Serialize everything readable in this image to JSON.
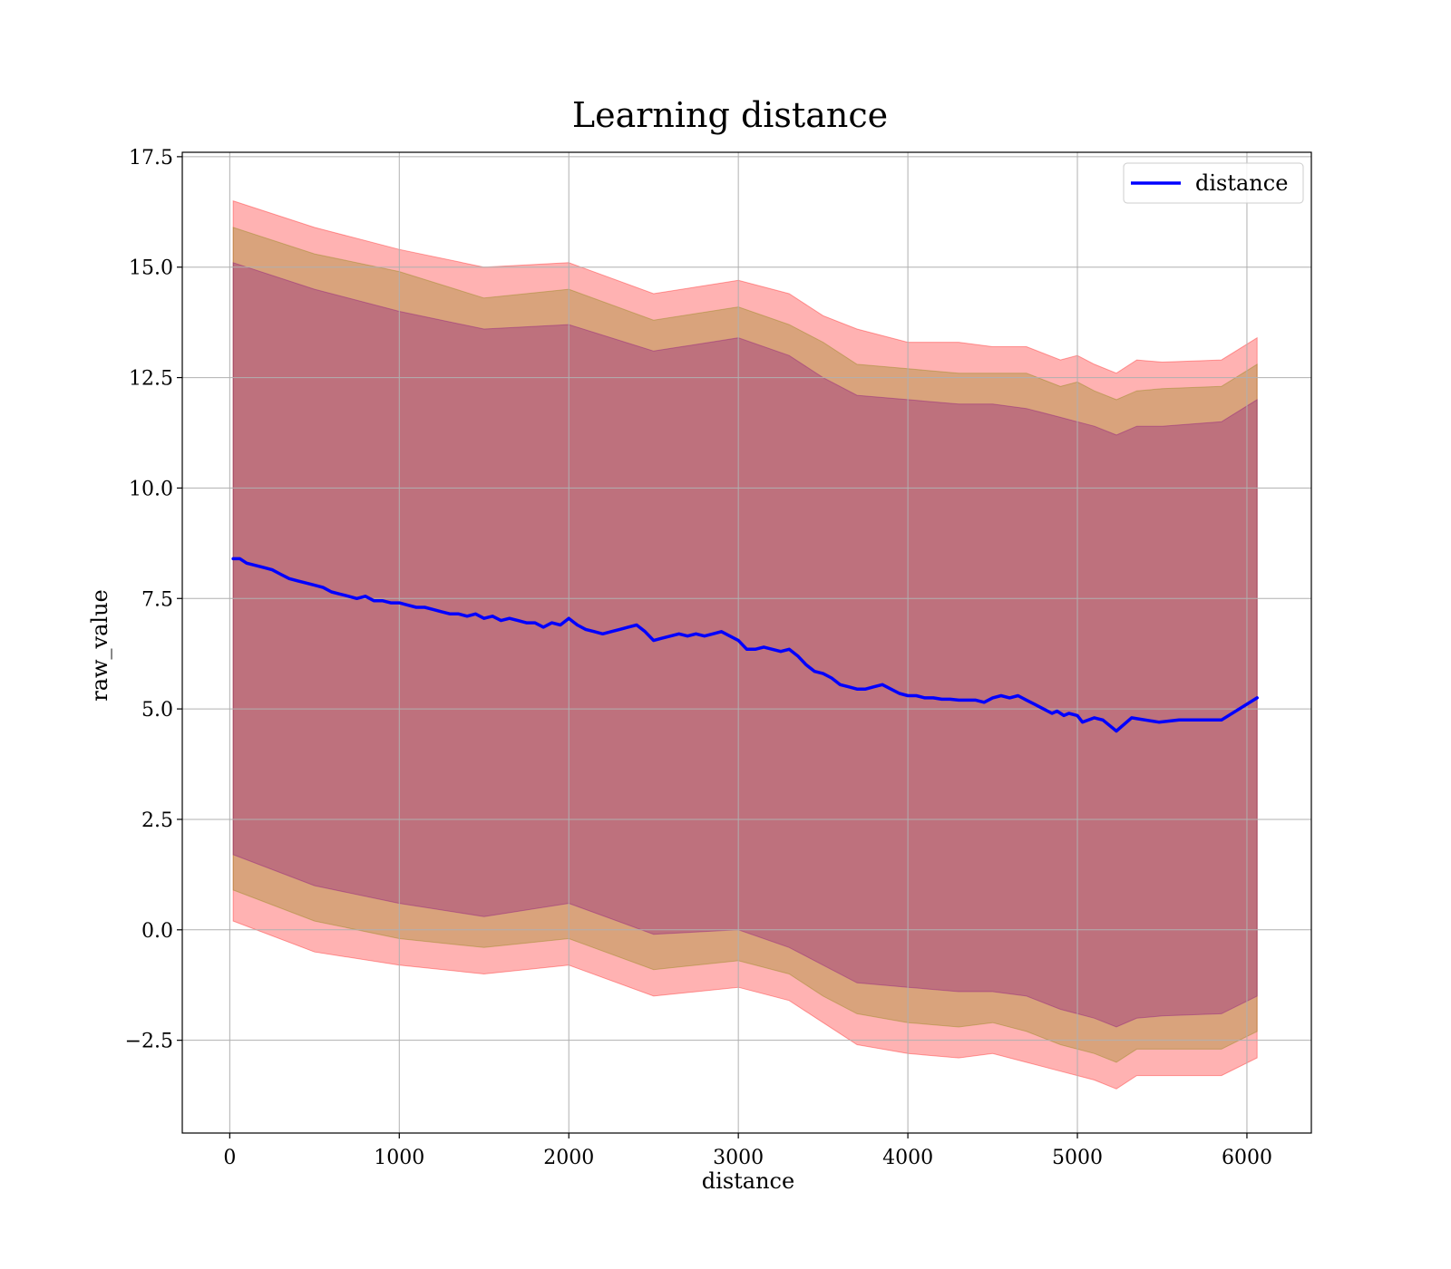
{
  "chart_data": {
    "type": "line",
    "title": "Learning distance",
    "xlabel": "distance",
    "ylabel": "raw_value",
    "xlim": [
      -280,
      6380
    ],
    "ylim": [
      -4.6,
      17.6
    ],
    "grid": true,
    "legend_position": "top-right",
    "x_ticks": [
      0,
      1000,
      2000,
      3000,
      4000,
      5000,
      6000
    ],
    "x_tick_labels": [
      "0",
      "1000",
      "2000",
      "3000",
      "4000",
      "5000",
      "6000"
    ],
    "y_ticks": [
      -2.5,
      0.0,
      2.5,
      5.0,
      7.5,
      10.0,
      12.5,
      15.0,
      17.5
    ],
    "y_tick_labels": [
      "−2.5",
      "0.0",
      "2.5",
      "5.0",
      "7.5",
      "10.0",
      "12.5",
      "15.0",
      "17.5"
    ],
    "series": [
      {
        "name": "distance",
        "color": "#0000ff",
        "x": [
          20,
          60,
          100,
          150,
          200,
          250,
          300,
          350,
          400,
          450,
          500,
          550,
          600,
          650,
          700,
          750,
          800,
          850,
          900,
          950,
          1000,
          1050,
          1100,
          1150,
          1200,
          1250,
          1300,
          1350,
          1400,
          1450,
          1500,
          1550,
          1600,
          1650,
          1700,
          1750,
          1800,
          1850,
          1900,
          1950,
          2000,
          2050,
          2100,
          2150,
          2200,
          2250,
          2300,
          2350,
          2400,
          2450,
          2500,
          2550,
          2600,
          2650,
          2700,
          2750,
          2800,
          2850,
          2900,
          2950,
          3000,
          3050,
          3100,
          3150,
          3200,
          3250,
          3300,
          3350,
          3400,
          3450,
          3500,
          3550,
          3600,
          3650,
          3700,
          3750,
          3800,
          3850,
          3900,
          3950,
          4000,
          4050,
          4100,
          4150,
          4200,
          4250,
          4300,
          4350,
          4400,
          4450,
          4500,
          4550,
          4600,
          4650,
          4700,
          4750,
          4800,
          4850,
          4880,
          4920,
          4950,
          5000,
          5030,
          5100,
          5150,
          5230,
          5320,
          5480,
          5600,
          5850,
          6060
        ],
        "values": [
          8.4,
          8.4,
          8.3,
          8.25,
          8.2,
          8.15,
          8.05,
          7.95,
          7.9,
          7.85,
          7.8,
          7.75,
          7.65,
          7.6,
          7.55,
          7.5,
          7.55,
          7.45,
          7.45,
          7.4,
          7.4,
          7.35,
          7.3,
          7.3,
          7.25,
          7.2,
          7.15,
          7.15,
          7.1,
          7.15,
          7.05,
          7.1,
          7.0,
          7.05,
          7.0,
          6.95,
          6.95,
          6.85,
          6.95,
          6.9,
          7.05,
          6.9,
          6.8,
          6.75,
          6.7,
          6.75,
          6.8,
          6.85,
          6.9,
          6.75,
          6.55,
          6.6,
          6.65,
          6.7,
          6.65,
          6.7,
          6.65,
          6.7,
          6.75,
          6.65,
          6.55,
          6.35,
          6.35,
          6.4,
          6.35,
          6.3,
          6.35,
          6.2,
          6.0,
          5.85,
          5.8,
          5.7,
          5.55,
          5.5,
          5.45,
          5.45,
          5.5,
          5.55,
          5.45,
          5.35,
          5.3,
          5.3,
          5.25,
          5.25,
          5.22,
          5.22,
          5.2,
          5.2,
          5.2,
          5.15,
          5.25,
          5.3,
          5.25,
          5.3,
          5.2,
          5.1,
          5.0,
          4.9,
          4.95,
          4.85,
          4.9,
          4.85,
          4.7,
          4.8,
          4.75,
          4.5,
          4.8,
          4.7,
          4.75,
          4.75,
          5.25
        ]
      }
    ],
    "bands": [
      {
        "color": "#ff0000",
        "opacity": 0.3,
        "x": [
          20,
          500,
          1000,
          1500,
          2000,
          2500,
          3000,
          3300,
          3500,
          3700,
          4000,
          4300,
          4500,
          4700,
          4900,
          5000,
          5100,
          5230,
          5350,
          5500,
          5850,
          6060
        ],
        "upper": [
          16.5,
          15.9,
          15.4,
          15.0,
          15.1,
          14.4,
          14.7,
          14.4,
          13.9,
          13.6,
          13.3,
          13.3,
          13.2,
          13.2,
          12.9,
          13.0,
          12.8,
          12.6,
          12.9,
          12.85,
          12.9,
          13.4
        ],
        "lower": [
          0.2,
          -0.5,
          -0.8,
          -1.0,
          -0.8,
          -1.5,
          -1.3,
          -1.6,
          -2.1,
          -2.6,
          -2.8,
          -2.9,
          -2.8,
          -3.0,
          -3.2,
          -3.3,
          -3.4,
          -3.6,
          -3.3,
          -3.3,
          -3.3,
          -2.9
        ]
      },
      {
        "color": "#808000",
        "opacity": 0.3,
        "x": [
          20,
          500,
          1000,
          1500,
          2000,
          2500,
          3000,
          3300,
          3500,
          3700,
          4000,
          4300,
          4500,
          4700,
          4900,
          5000,
          5100,
          5230,
          5350,
          5500,
          5850,
          6060
        ],
        "upper": [
          15.9,
          15.3,
          14.9,
          14.3,
          14.5,
          13.8,
          14.1,
          13.7,
          13.3,
          12.8,
          12.7,
          12.6,
          12.6,
          12.6,
          12.3,
          12.4,
          12.2,
          12.0,
          12.2,
          12.25,
          12.3,
          12.8
        ],
        "lower": [
          0.9,
          0.2,
          -0.2,
          -0.4,
          -0.2,
          -0.9,
          -0.7,
          -1.0,
          -1.5,
          -1.9,
          -2.1,
          -2.2,
          -2.1,
          -2.3,
          -2.6,
          -2.7,
          -2.8,
          -3.0,
          -2.7,
          -2.7,
          -2.7,
          -2.3
        ]
      },
      {
        "color": "#800080",
        "opacity": 0.3,
        "x": [
          20,
          500,
          1000,
          1500,
          2000,
          2500,
          3000,
          3300,
          3500,
          3700,
          4000,
          4300,
          4500,
          4700,
          4900,
          5000,
          5100,
          5230,
          5350,
          5500,
          5850,
          6060
        ],
        "upper": [
          15.1,
          14.5,
          14.0,
          13.6,
          13.7,
          13.1,
          13.4,
          13.0,
          12.5,
          12.1,
          12.0,
          11.9,
          11.9,
          11.8,
          11.6,
          11.5,
          11.4,
          11.2,
          11.4,
          11.4,
          11.5,
          12.0
        ],
        "lower": [
          1.7,
          1.0,
          0.6,
          0.3,
          0.6,
          -0.1,
          0.0,
          -0.4,
          -0.8,
          -1.2,
          -1.3,
          -1.4,
          -1.4,
          -1.5,
          -1.8,
          -1.9,
          -2.0,
          -2.2,
          -2.0,
          -1.95,
          -1.9,
          -1.5
        ]
      }
    ]
  }
}
